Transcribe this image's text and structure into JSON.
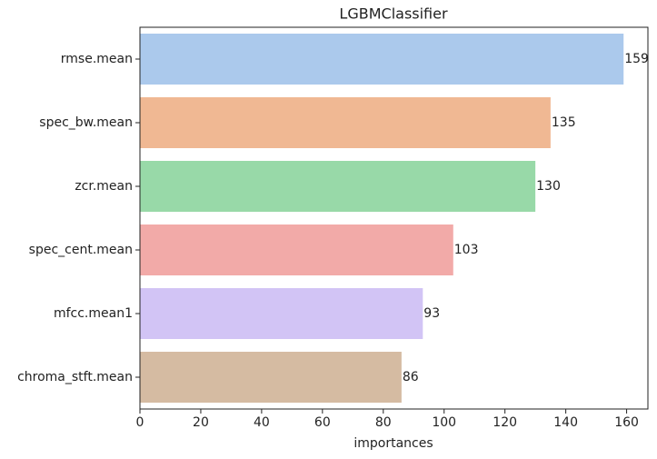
{
  "chart_data": {
    "type": "barh",
    "title": "LGBMClassifier",
    "xlabel": "importances",
    "categories": [
      "rmse.mean",
      "spec_bw.mean",
      "zcr.mean",
      "spec_cent.mean",
      "mfcc.mean1",
      "chroma_stft.mean"
    ],
    "values": [
      159,
      135,
      130,
      103,
      93,
      86
    ],
    "colors": [
      "#abc9ec",
      "#f0b893",
      "#98d9a8",
      "#f2aaa8",
      "#d2c4f5",
      "#d5bba2"
    ],
    "xlim": [
      0,
      167
    ],
    "xticks": [
      0,
      20,
      40,
      60,
      80,
      100,
      120,
      140,
      160
    ]
  }
}
